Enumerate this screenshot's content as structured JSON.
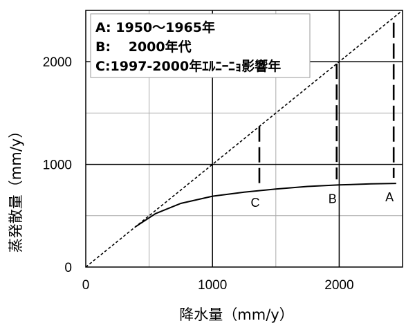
{
  "chart_data": {
    "type": "line",
    "xlabel": "降水量（mm/y）",
    "ylabel": "蒸発散量（mm/y）",
    "xlim": [
      0,
      2500
    ],
    "ylim": [
      0,
      2500
    ],
    "x_ticks": [
      0,
      1000,
      2000
    ],
    "y_ticks": [
      0,
      1000,
      2000
    ],
    "grid": true,
    "grid_minor_step": 500,
    "legend_placement": "top-left",
    "legend": [
      "A: 1950～1965年",
      "B: 　2000年代",
      "C:1997-2000年ｴﾙﾆｰﾆｮ影響年"
    ],
    "series": [
      {
        "style": "dotted",
        "x": [
          0,
          2500
        ],
        "y": [
          0,
          2500
        ]
      },
      {
        "style": "solid",
        "x": [
          390,
          550,
          750,
          1000,
          1250,
          1500,
          1750,
          2000,
          2250,
          2450
        ],
        "y": [
          390,
          520,
          620,
          690,
          730,
          760,
          785,
          800,
          810,
          815
        ]
      }
    ],
    "gaps": [
      {
        "label": "C",
        "x": 1370,
        "y_low": 760,
        "y_high": 1370
      },
      {
        "label": "B",
        "x": 1980,
        "y_low": 800,
        "y_high": 1980
      },
      {
        "label": "A",
        "x": 2430,
        "y_low": 815,
        "y_high": 2380
      }
    ]
  }
}
